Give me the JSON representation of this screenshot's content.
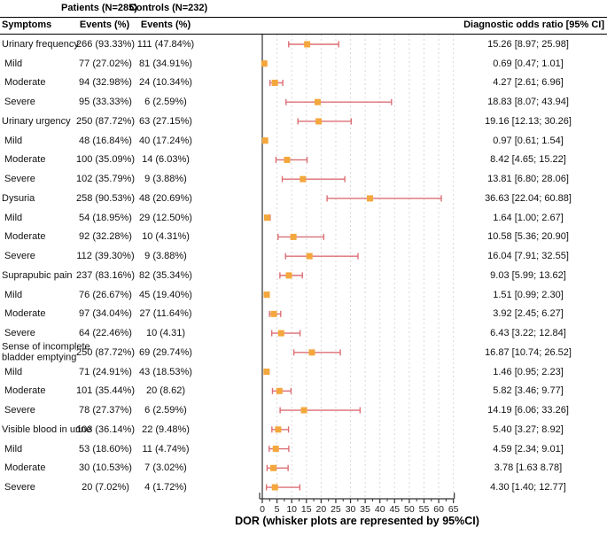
{
  "header": {
    "patients_n": "Patients (N=285)",
    "controls_n": "Controls (N=232)",
    "symptoms": "Symptoms",
    "events_patients": "Events (%)",
    "events_controls": "Events (%)",
    "dor": "Diagnostic odds ratio [95% CI]"
  },
  "chart_data": {
    "type": "forest",
    "xlabel": "DOR (whisker plots are represented by 95%CI)",
    "xlim": [
      0,
      65
    ],
    "x_ticks": [
      0,
      5,
      10,
      15,
      20,
      25,
      30,
      35,
      40,
      45,
      50,
      55,
      60,
      65
    ],
    "grid": "dashed vertical at every 5 units",
    "marker_color": "#F3A73C",
    "whisker_color": "#DC6F75",
    "rows": [
      {
        "label": "Urinary frequency",
        "indent": false,
        "patients": "266 (93.33%)",
        "controls": "111 (47.84%)",
        "dor": 15.26,
        "lo": 8.97,
        "hi": 25.98,
        "dor_text": "15.26 [8.97; 25.98]"
      },
      {
        "label": "Mild",
        "indent": true,
        "patients": "77 (27.02%)",
        "controls": "81 (34.91%)",
        "dor": 0.69,
        "lo": 0.47,
        "hi": 1.01,
        "dor_text": "0.69 [0.47; 1.01]"
      },
      {
        "label": "Moderate",
        "indent": true,
        "patients": "94 (32.98%)",
        "controls": "24 (10.34%)",
        "dor": 4.27,
        "lo": 2.61,
        "hi": 6.96,
        "dor_text": "4.27 [2.61; 6.96]"
      },
      {
        "label": "Severe",
        "indent": true,
        "patients": "95 (33.33%)",
        "controls": "6 (2.59%)",
        "dor": 18.83,
        "lo": 8.07,
        "hi": 43.94,
        "dor_text": "18.83 [8.07; 43.94]"
      },
      {
        "label": "Urinary urgency",
        "indent": false,
        "patients": "250 (87.72%)",
        "controls": "63 (27.15%)",
        "dor": 19.16,
        "lo": 12.13,
        "hi": 30.26,
        "dor_text": "19.16 [12.13; 30.26]"
      },
      {
        "label": "Mild",
        "indent": true,
        "patients": "48 (16.84%)",
        "controls": "40 (17.24%)",
        "dor": 0.97,
        "lo": 0.61,
        "hi": 1.54,
        "dor_text": "0.97 [0.61; 1.54]"
      },
      {
        "label": "Moderate",
        "indent": true,
        "patients": "100 (35.09%)",
        "controls": "14 (6.03%)",
        "dor": 8.42,
        "lo": 4.65,
        "hi": 15.22,
        "dor_text": "8.42 [4.65; 15.22]"
      },
      {
        "label": "Severe",
        "indent": true,
        "patients": "102 (35.79%)",
        "controls": "9 (3.88%)",
        "dor": 13.81,
        "lo": 6.8,
        "hi": 28.06,
        "dor_text": "13.81 [6.80; 28.06]"
      },
      {
        "label": "Dysuria",
        "indent": false,
        "patients": "258 (90.53%)",
        "controls": "48 (20.69%)",
        "dor": 36.63,
        "lo": 22.04,
        "hi": 60.88,
        "dor_text": "36.63 [22.04; 60.88]"
      },
      {
        "label": "Mild",
        "indent": true,
        "patients": "54 (18.95%)",
        "controls": "29 (12.50%)",
        "dor": 1.64,
        "lo": 1.0,
        "hi": 2.67,
        "dor_text": "1.64 [1.00; 2.67]"
      },
      {
        "label": "Moderate",
        "indent": true,
        "patients": "92 (32.28%)",
        "controls": "10 (4.31%)",
        "dor": 10.58,
        "lo": 5.36,
        "hi": 20.9,
        "dor_text": "10.58 [5.36; 20.90]"
      },
      {
        "label": "Severe",
        "indent": true,
        "patients": "112 (39.30%)",
        "controls": "9 (3.88%)",
        "dor": 16.04,
        "lo": 7.91,
        "hi": 32.55,
        "dor_text": "16.04 [7.91; 32.55]"
      },
      {
        "label": "Suprapubic pain",
        "indent": false,
        "patients": "237 (83.16%)",
        "controls": "82 (35.34%)",
        "dor": 9.03,
        "lo": 5.99,
        "hi": 13.62,
        "dor_text": "9.03 [5.99; 13.62]"
      },
      {
        "label": "Mild",
        "indent": true,
        "patients": "76 (26.67%)",
        "controls": "45 (19.40%)",
        "dor": 1.51,
        "lo": 0.99,
        "hi": 2.3,
        "dor_text": "1.51 [0.99; 2.30]"
      },
      {
        "label": "Moderate",
        "indent": true,
        "patients": "97 (34.04%)",
        "controls": "27 (11.64%)",
        "dor": 3.92,
        "lo": 2.45,
        "hi": 6.27,
        "dor_text": "3.92 [2.45; 6.27]"
      },
      {
        "label": "Severe",
        "indent": true,
        "patients": "64 (22.46%)",
        "controls": "10 (4.31)",
        "dor": 6.43,
        "lo": 3.22,
        "hi": 12.84,
        "dor_text": "6.43 [3.22; 12.84]"
      },
      {
        "label": "Sense of incomplete bladder emptying",
        "indent": false,
        "patients": "250 (87.72%)",
        "controls": "69 (29.74%)",
        "dor": 16.87,
        "lo": 10.74,
        "hi": 26.52,
        "dor_text": "16.87 [10.74; 26.52]"
      },
      {
        "label": "Mild",
        "indent": true,
        "patients": "71 (24.91%)",
        "controls": "43 (18.53%)",
        "dor": 1.46,
        "lo": 0.95,
        "hi": 2.23,
        "dor_text": "1.46 [0.95; 2.23]"
      },
      {
        "label": "Moderate",
        "indent": true,
        "patients": "101 (35.44%)",
        "controls": "20 (8.62)",
        "dor": 5.82,
        "lo": 3.46,
        "hi": 9.77,
        "dor_text": "5.82 [3.46; 9.77]"
      },
      {
        "label": "Severe",
        "indent": true,
        "patients": "78 (27.37%)",
        "controls": "6 (2.59%)",
        "dor": 14.19,
        "lo": 6.06,
        "hi": 33.26,
        "dor_text": "14.19 [6.06; 33.26]"
      },
      {
        "label": "Visible blood in urine",
        "indent": false,
        "patients": "103 (36.14%)",
        "controls": "22 (9.48%)",
        "dor": 5.4,
        "lo": 3.27,
        "hi": 8.92,
        "dor_text": "5.40 [3.27; 8.92]"
      },
      {
        "label": "Mild",
        "indent": true,
        "patients": "53 (18.60%)",
        "controls": "11 (4.74%)",
        "dor": 4.59,
        "lo": 2.34,
        "hi": 9.01,
        "dor_text": "4.59 [2.34; 9.01]"
      },
      {
        "label": "Moderate",
        "indent": true,
        "patients": "30 (10.53%)",
        "controls": "7 (3.02%)",
        "dor": 3.78,
        "lo": 1.63,
        "hi": 8.78,
        "dor_text": "3.78 [1.63 8.78]"
      },
      {
        "label": "Severe",
        "indent": true,
        "patients": "20 (7.02%)",
        "controls": "4 (1.72%)",
        "dor": 4.3,
        "lo": 1.4,
        "hi": 12.77,
        "dor_text": "4.30 [1.40; 12.77]"
      }
    ]
  }
}
